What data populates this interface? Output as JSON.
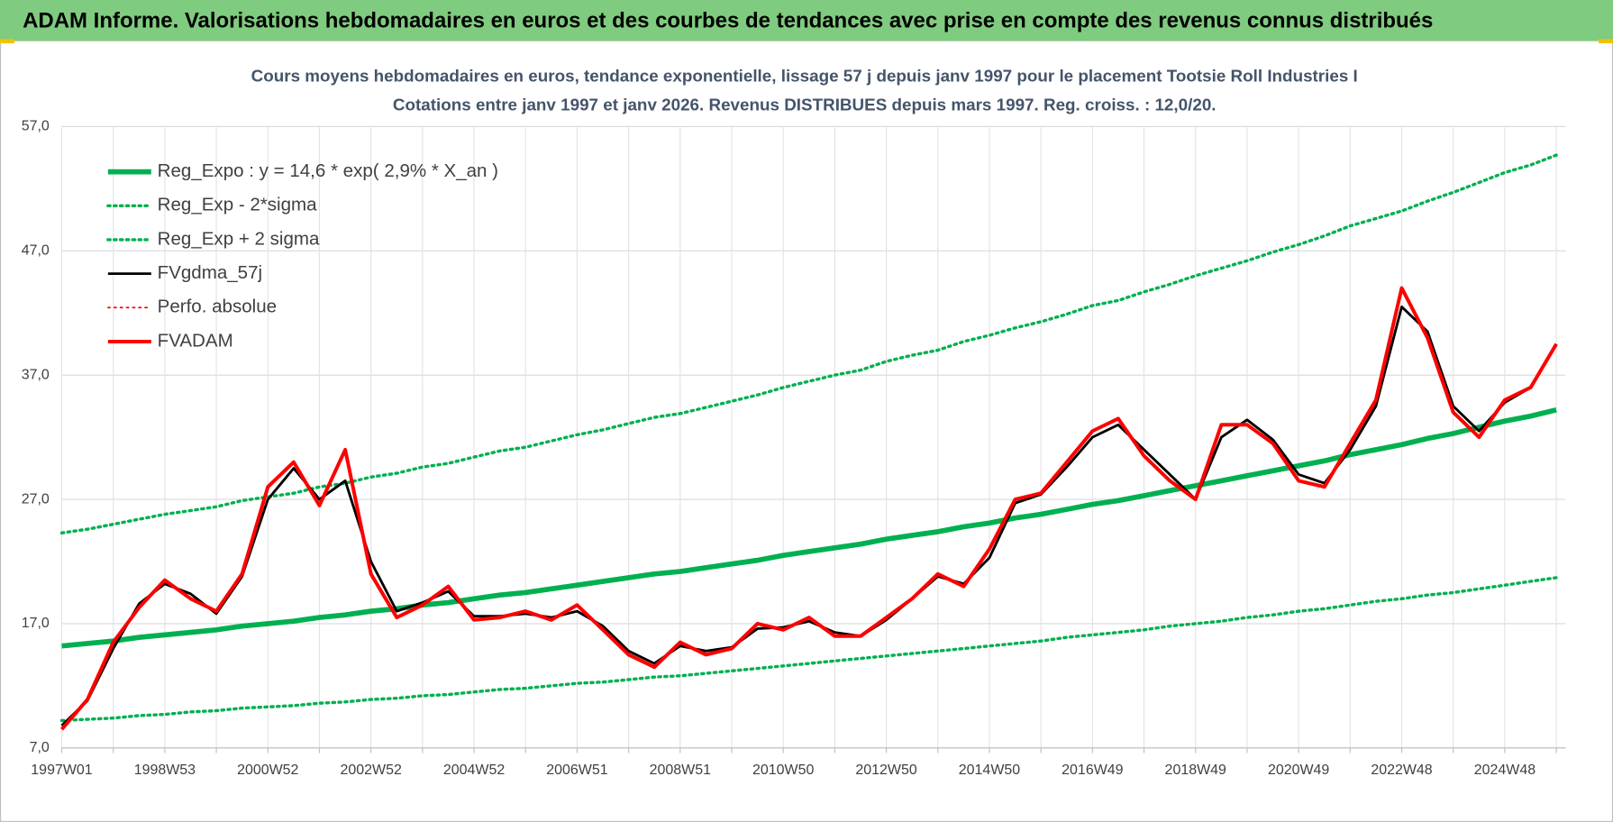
{
  "header": {
    "title": "ADAM Informe. Valorisations hebdomadaires en euros et des courbes de tendances avec prise en compte des revenus connus distribués"
  },
  "chart_data": {
    "type": "line",
    "title": "Cours moyens hebdomadaires en euros, tendance exponentielle, lissage 57 j depuis janv 1997  pour le  placement Tootsie Roll Industries I",
    "subtitle": "Cotations entre janv 1997 et janv 2026. Revenus DISTRIBUES depuis mars 1997. Reg. croiss. : 12,0/20.",
    "categories": [
      "1997W01",
      null,
      null,
      null,
      "1998W53",
      null,
      null,
      null,
      "2000W52",
      null,
      null,
      null,
      "2002W52",
      null,
      null,
      null,
      "2004W52",
      null,
      null,
      null,
      "2006W51",
      null,
      null,
      null,
      "2008W51",
      null,
      null,
      null,
      "2010W50",
      null,
      null,
      null,
      "2012W50",
      null,
      null,
      null,
      "2014W50",
      null,
      null,
      null,
      "2016W49",
      null,
      null,
      null,
      "2018W49",
      null,
      null,
      null,
      "2020W49",
      null,
      null,
      null,
      "2022W48",
      null,
      null,
      null,
      "2024W48",
      null,
      null
    ],
    "ylim": [
      7,
      57
    ],
    "yticks": [
      {
        "value": 7,
        "label": "7,0"
      },
      {
        "value": 17,
        "label": "17,0"
      },
      {
        "value": 27,
        "label": "27,0"
      },
      {
        "value": 37,
        "label": "37,0"
      },
      {
        "value": 47,
        "label": "47,0"
      },
      {
        "value": 57,
        "label": "57,0"
      }
    ],
    "grid": true,
    "legend": "upper left",
    "series": [
      {
        "name": "Reg_Expo : y = 14,6 * exp( 2,9% *  X_an )",
        "color": "#00b050",
        "line_style": "solid",
        "values": [
          15.2,
          15.4,
          15.6,
          15.9,
          16.1,
          16.3,
          16.5,
          16.8,
          17.0,
          17.2,
          17.5,
          17.7,
          18.0,
          18.2,
          18.5,
          18.7,
          19.0,
          19.3,
          19.5,
          19.8,
          20.1,
          20.4,
          20.7,
          21.0,
          21.2,
          21.5,
          21.8,
          22.1,
          22.5,
          22.8,
          23.1,
          23.4,
          23.8,
          24.1,
          24.4,
          24.8,
          25.1,
          25.5,
          25.8,
          26.2,
          26.6,
          26.9,
          27.3,
          27.7,
          28.1,
          28.5,
          28.9,
          29.3,
          29.7,
          30.1,
          30.6,
          31.0,
          31.4,
          31.9,
          32.3,
          32.8,
          33.3,
          33.7,
          34.2
        ]
      },
      {
        "name": "Reg_Exp - 2*sigma",
        "color": "#00b050",
        "line_style": "dotted",
        "values": [
          9.2,
          9.3,
          9.4,
          9.6,
          9.7,
          9.9,
          10.0,
          10.2,
          10.3,
          10.4,
          10.6,
          10.7,
          10.9,
          11.0,
          11.2,
          11.3,
          11.5,
          11.7,
          11.8,
          12.0,
          12.2,
          12.3,
          12.5,
          12.7,
          12.8,
          13.0,
          13.2,
          13.4,
          13.6,
          13.8,
          14.0,
          14.2,
          14.4,
          14.6,
          14.8,
          15.0,
          15.2,
          15.4,
          15.6,
          15.9,
          16.1,
          16.3,
          16.5,
          16.8,
          17.0,
          17.2,
          17.5,
          17.7,
          18.0,
          18.2,
          18.5,
          18.8,
          19.0,
          19.3,
          19.5,
          19.8,
          20.1,
          20.4,
          20.7
        ]
      },
      {
        "name": "Reg_Exp + 2 sigma",
        "color": "#00b050",
        "line_style": "dotted",
        "values": [
          24.3,
          24.6,
          25.0,
          25.4,
          25.8,
          26.1,
          26.4,
          26.9,
          27.2,
          27.5,
          28.0,
          28.3,
          28.8,
          29.1,
          29.6,
          29.9,
          30.4,
          30.9,
          31.2,
          31.7,
          32.2,
          32.6,
          33.1,
          33.6,
          33.9,
          34.4,
          34.9,
          35.4,
          36.0,
          36.5,
          37.0,
          37.4,
          38.1,
          38.6,
          39.0,
          39.7,
          40.2,
          40.8,
          41.3,
          41.9,
          42.6,
          43.0,
          43.7,
          44.3,
          45.0,
          45.6,
          46.2,
          46.9,
          47.5,
          48.2,
          49.0,
          49.6,
          50.2,
          51.0,
          51.7,
          52.5,
          53.3,
          53.9,
          54.7
        ]
      },
      {
        "name": "FVgdma_57j",
        "color": "#000000",
        "line_style": "solid",
        "values": [
          8.8,
          10.8,
          15,
          18.6,
          20.2,
          19.4,
          17.8,
          20.8,
          27,
          29.5,
          27,
          28.5,
          22,
          18,
          18.7,
          19.6,
          17.6,
          17.6,
          17.8,
          17.5,
          18,
          16.8,
          14.8,
          13.8,
          15.2,
          14.8,
          15.1,
          16.6,
          16.7,
          17.2,
          16.3,
          16,
          17.3,
          19,
          20.8,
          20.2,
          22.3,
          26.7,
          27.4,
          29.6,
          32,
          33,
          31,
          29,
          27,
          32,
          33.4,
          31.8,
          29,
          28.3,
          31,
          34.5,
          42.5,
          40.5,
          34.5,
          32.5,
          34.8,
          36,
          39.5
        ]
      },
      {
        "name": "Perfo. absolue",
        "color": "#ff0000",
        "line_style": "dotted",
        "values": [
          null,
          null,
          null,
          null,
          null,
          null,
          null,
          null,
          null,
          null,
          null,
          null,
          null,
          null,
          null,
          null,
          null,
          null,
          null,
          null,
          null,
          null,
          null,
          null,
          null,
          null,
          null,
          null,
          null,
          null,
          null,
          null,
          null,
          null,
          null,
          null,
          null,
          null,
          null,
          null,
          null,
          null,
          null,
          null,
          null,
          null,
          null,
          null,
          null,
          null,
          null,
          null,
          null,
          null,
          null,
          null,
          null,
          null,
          null
        ]
      },
      {
        "name": "FVADAM",
        "color": "#ff0000",
        "line_style": "solid",
        "values": [
          8.5,
          10.9,
          15.5,
          18.3,
          20.5,
          19,
          18,
          21,
          28,
          30,
          26.5,
          31,
          21,
          17.5,
          18.5,
          20,
          17.3,
          17.5,
          18,
          17.3,
          18.5,
          16.5,
          14.5,
          13.5,
          15.5,
          14.5,
          15,
          17,
          16.5,
          17.5,
          16,
          16,
          17.5,
          19,
          21,
          20,
          23,
          27,
          27.5,
          30,
          32.5,
          33.5,
          30.5,
          28.5,
          27,
          33,
          33,
          31.5,
          28.5,
          28,
          31.5,
          35,
          44,
          40,
          34,
          32,
          35,
          36,
          39.5
        ]
      }
    ]
  }
}
